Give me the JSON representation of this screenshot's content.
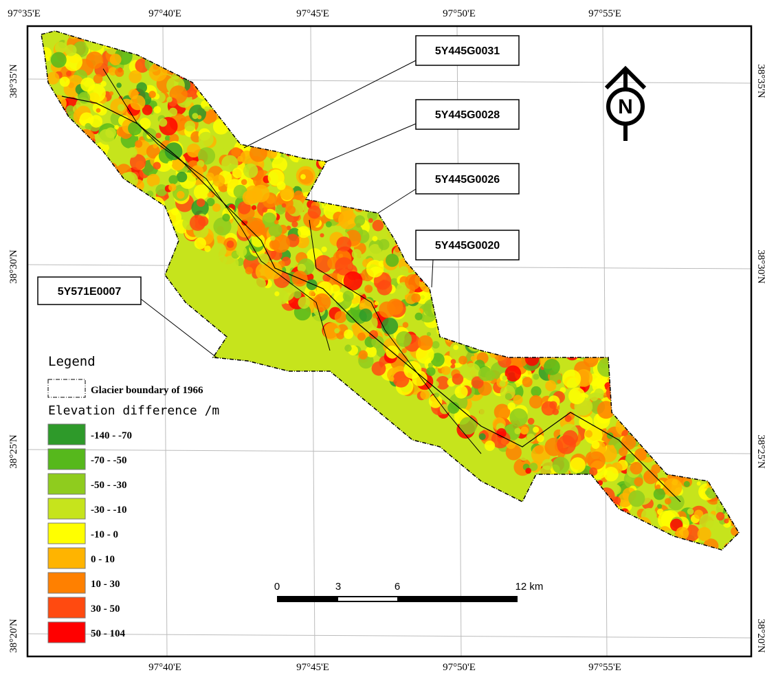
{
  "graticule": {
    "top": [
      "97°35'E",
      "97°40'E",
      "97°45'E",
      "97°50'E",
      "97°55'E"
    ],
    "bottom": [
      "97°40'E",
      "97°45'E",
      "97°50'E",
      "97°55'E"
    ],
    "left": [
      "38°35'N",
      "38°30'N",
      "38°25'N",
      "38°20'N"
    ],
    "right": [
      "38°35'N",
      "38°30'N",
      "38°25'N",
      "38°20'N"
    ]
  },
  "glacier_labels": [
    "5Y445G0031",
    "5Y445G0028",
    "5Y445G0026",
    "5Y445G0020",
    "5Y571E0007"
  ],
  "legend": {
    "title": "Legend",
    "boundary": "Glacier boundary of 1966",
    "subtitle": "Elevation difference /m",
    "classes": [
      {
        "label": "-140 - -70",
        "color": "#2e9a2a"
      },
      {
        "label": "-70 - -50",
        "color": "#56b81c"
      },
      {
        "label": "-50 - -30",
        "color": "#8fcc1e"
      },
      {
        "label": "-30 - -10",
        "color": "#c6e41c"
      },
      {
        "label": "-10 - 0",
        "color": "#ffff00"
      },
      {
        "label": "0 - 10",
        "color": "#ffb400"
      },
      {
        "label": "10 - 30",
        "color": "#ff8000"
      },
      {
        "label": "30 - 50",
        "color": "#ff4a10"
      },
      {
        "label": "50 - 104",
        "color": "#ff0000"
      }
    ]
  },
  "scale_bar": {
    "ticks": [
      "0",
      "3",
      "6",
      "12 km"
    ]
  },
  "north_arrow": "N"
}
